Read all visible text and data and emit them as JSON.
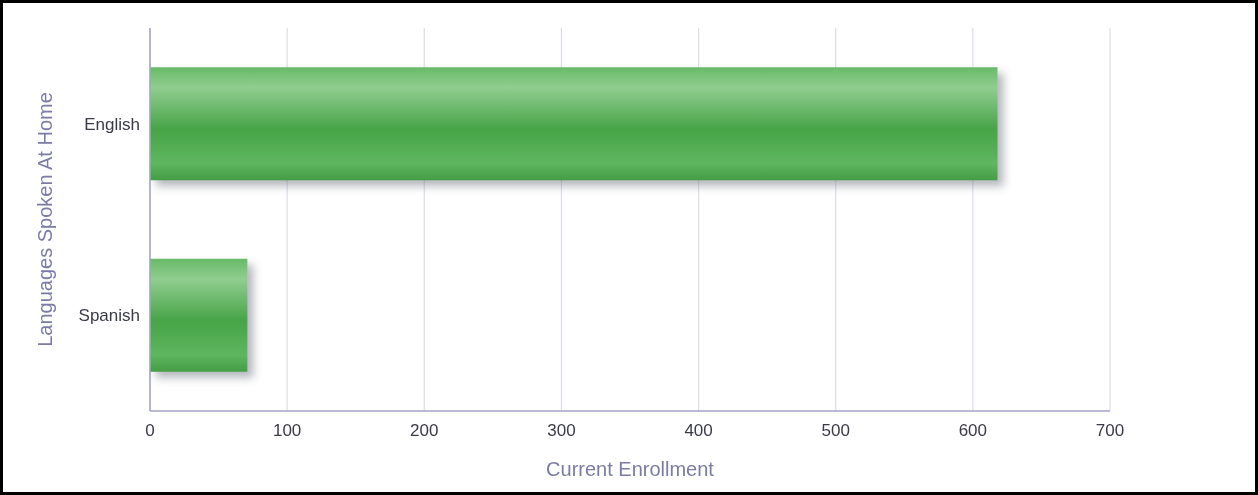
{
  "chart_data": {
    "type": "bar",
    "orientation": "horizontal",
    "categories": [
      "English",
      "Spanish"
    ],
    "values": [
      618,
      71
    ],
    "color": "#4cae4c",
    "xlim": [
      0,
      700
    ],
    "xticks": [
      0,
      100,
      200,
      300,
      400,
      500,
      600,
      700
    ],
    "xlabel": "Current Enrollment",
    "ylabel": "Languages Spoken At Home",
    "grid": "x"
  }
}
